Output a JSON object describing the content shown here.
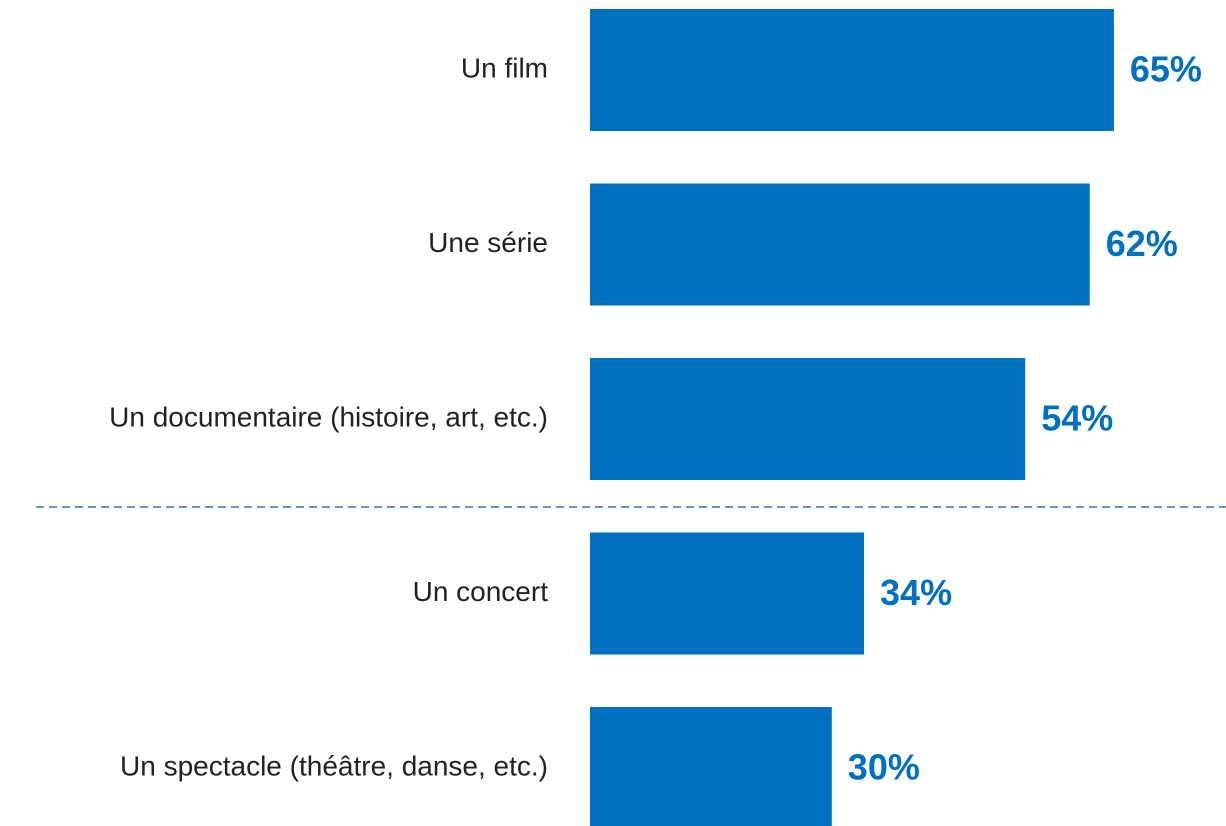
{
  "chart_data": {
    "type": "bar",
    "categories": [
      "Un film",
      "Une série",
      "Un documentaire (histoire, art, etc.)",
      "Un concert",
      "Un spectacle (théâtre, danse, etc.)"
    ],
    "values": [
      65,
      62,
      54,
      34,
      30
    ],
    "value_labels": [
      "65%",
      "62%",
      "54%",
      "34%",
      "30%"
    ],
    "color": "#0070c0"
  }
}
